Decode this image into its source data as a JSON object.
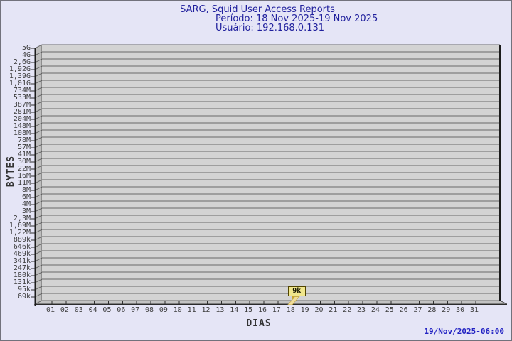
{
  "header": {
    "title": "SARG, Squid User Access Reports",
    "period": "Período: 18 Nov 2025-19 Nov 2025",
    "user": "Usuário: 192.168.0.131"
  },
  "footer": {
    "datestamp": "19/Nov/2025-06:00"
  },
  "chart_data": {
    "type": "bar",
    "title": "SARG, Squid User Access Reports",
    "subtitle": [
      "Período: 18 Nov 2025-19 Nov 2025",
      "Usuário: 192.168.0.131"
    ],
    "xlabel": "DIAS",
    "ylabel": "BYTES",
    "categories": [
      "01",
      "02",
      "03",
      "04",
      "05",
      "06",
      "07",
      "08",
      "09",
      "10",
      "11",
      "12",
      "13",
      "14",
      "15",
      "16",
      "17",
      "18",
      "19",
      "20",
      "21",
      "22",
      "23",
      "24",
      "25",
      "26",
      "27",
      "28",
      "29",
      "30",
      "31"
    ],
    "values": [
      0,
      0,
      0,
      0,
      0,
      0,
      0,
      0,
      0,
      0,
      0,
      0,
      0,
      0,
      0,
      0,
      0,
      9000,
      0,
      0,
      0,
      0,
      0,
      0,
      0,
      0,
      0,
      0,
      0,
      0,
      0
    ],
    "bar_day": "18",
    "bar_value_label": "9k",
    "y_tick_labels": [
      "5G",
      "4G",
      "2,6G",
      "1,92G",
      "1,39G",
      "1,01G",
      "734M",
      "533M",
      "387M",
      "281M",
      "204M",
      "148M",
      "108M",
      "78M",
      "57M",
      "41M",
      "30M",
      "22M",
      "16M",
      "11M",
      "8M",
      "6M",
      "4M",
      "3M",
      "2,3M",
      "1,69M",
      "1,22M",
      "889k",
      "646k",
      "469k",
      "341k",
      "247k",
      "180k",
      "131k",
      "95k",
      "69k"
    ],
    "axis_note": "geometric (log-like) byte scale from 69k to 5G; grid on; 3D perspective plot",
    "legend": "none",
    "colors": {
      "plot_bg": "#d3d3d3",
      "wall": "#bdbdbd",
      "floor": "#c2c2c2",
      "grid": "#6a6a6a",
      "axis": "#1c1c1c",
      "bar": "#efdc9b",
      "bar_side": "#c7a52e",
      "annotation_bg": "#f0e68c",
      "title_text": "#20209d",
      "stamp_text": "#2323c3",
      "page_bg": "#e5e5f6"
    }
  }
}
